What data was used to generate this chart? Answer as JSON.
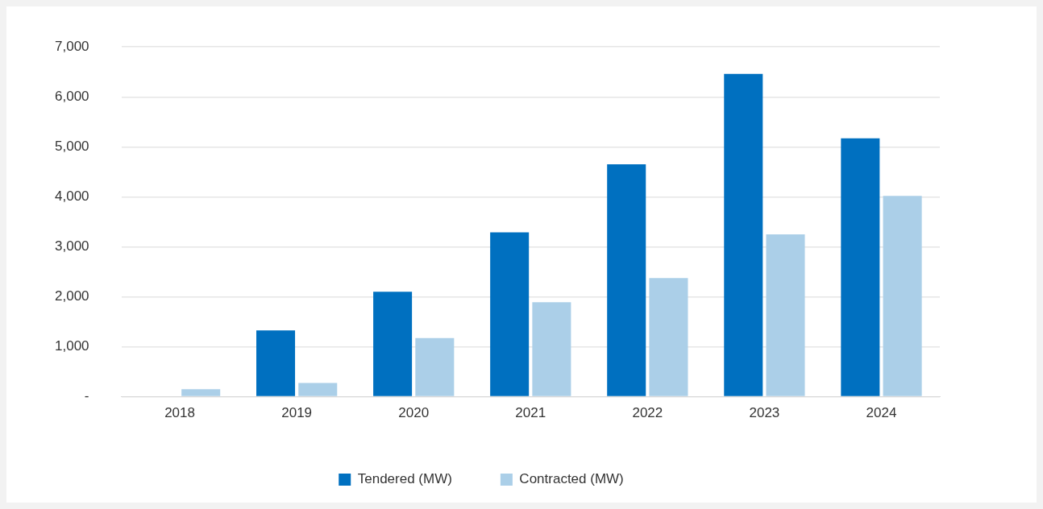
{
  "chart_data": {
    "type": "bar",
    "categories": [
      "2018",
      "2019",
      "2020",
      "2021",
      "2022",
      "2023",
      "2024"
    ],
    "series": [
      {
        "name": "Tendered (MW)",
        "color": "#0070c0",
        "values": [
          0,
          1325,
          2100,
          3290,
          4650,
          6460,
          5170
        ]
      },
      {
        "name": "Contracted (MW)",
        "color": "#abcfe8",
        "values": [
          150,
          275,
          1175,
          1890,
          2375,
          3250,
          4020
        ]
      }
    ],
    "ylim": [
      0,
      7000
    ],
    "yticks": [
      {
        "value": 0,
        "label": "-"
      },
      {
        "value": 1000,
        "label": "1,000"
      },
      {
        "value": 2000,
        "label": "2,000"
      },
      {
        "value": 3000,
        "label": "3,000"
      },
      {
        "value": 4000,
        "label": "4,000"
      },
      {
        "value": 5000,
        "label": "5,000"
      },
      {
        "value": 6000,
        "label": "6,000"
      },
      {
        "value": 7000,
        "label": "7,000"
      }
    ],
    "grid": "y",
    "legend": "bottom"
  }
}
